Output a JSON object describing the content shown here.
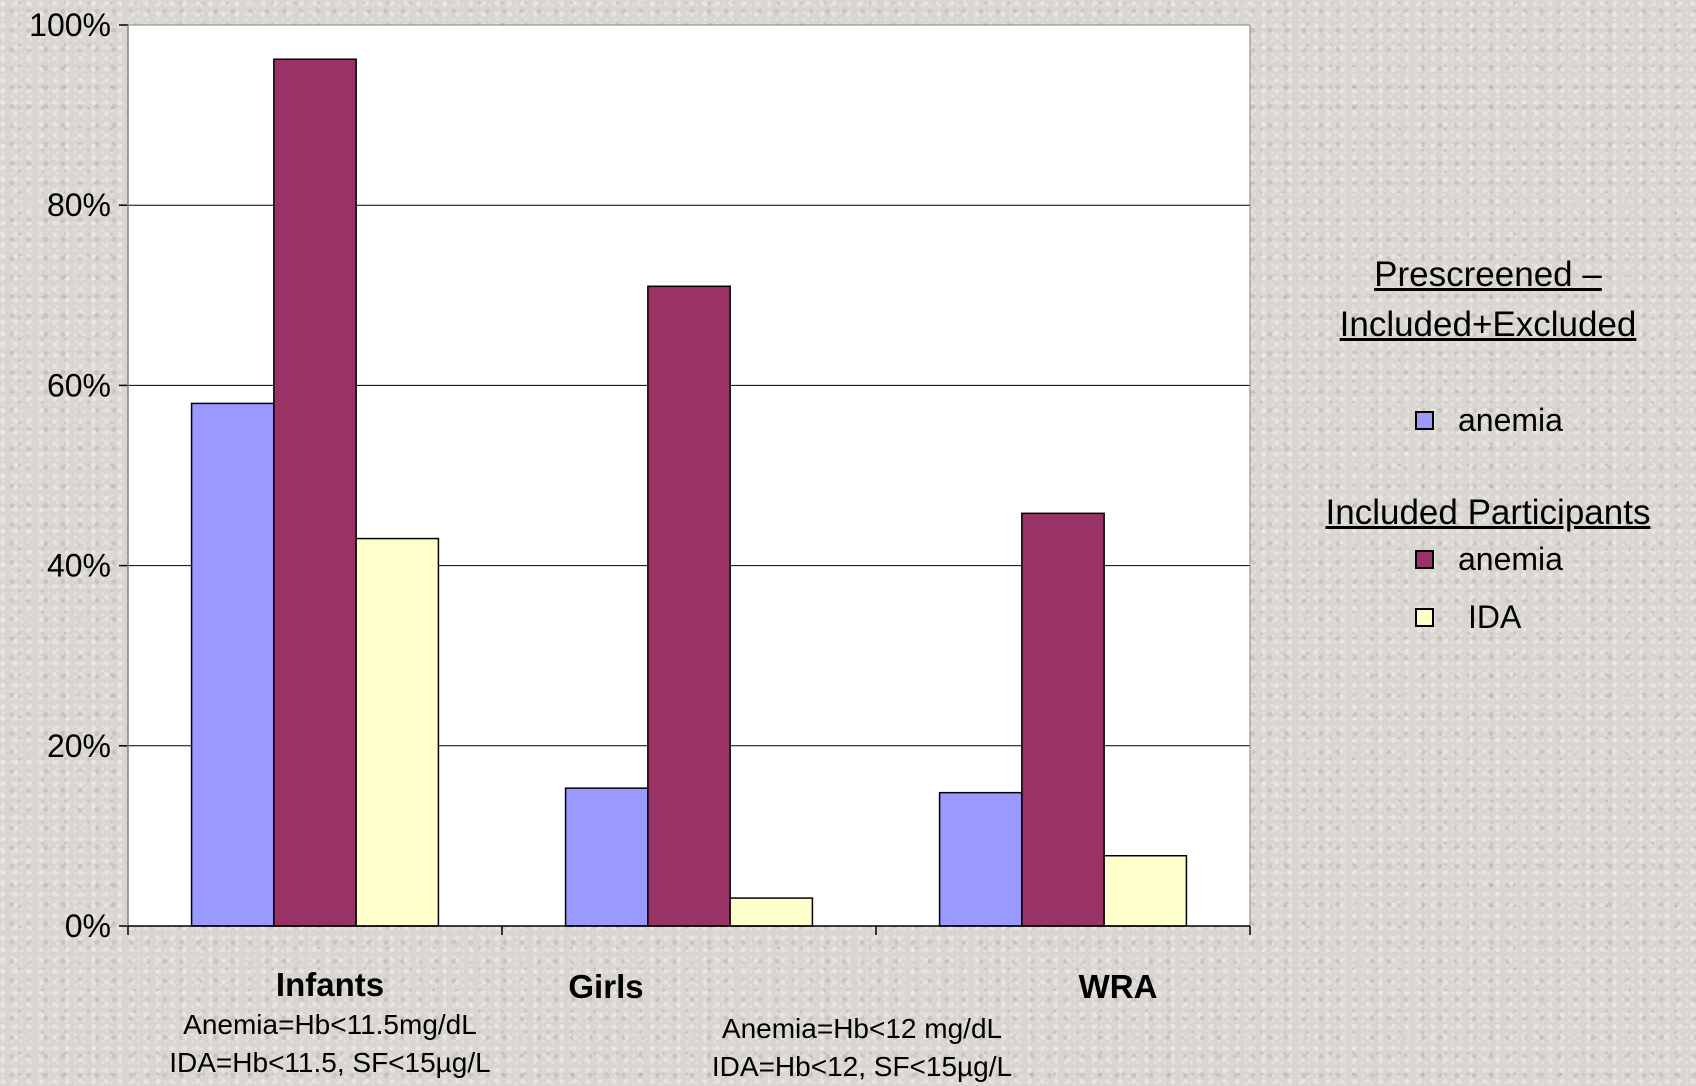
{
  "chart_data": {
    "type": "bar",
    "categories": [
      "Infants",
      "Girls",
      "WRA"
    ],
    "series": [
      {
        "name": "anemia",
        "group": "Prescreened – Included+Excluded",
        "values": [
          58,
          15.3,
          14.8
        ]
      },
      {
        "name": "anemia",
        "group": "Included Participants",
        "values": [
          96.2,
          71,
          45.8
        ]
      },
      {
        "name": "IDA",
        "group": "Included Participants",
        "values": [
          43,
          3.1,
          7.8
        ]
      }
    ],
    "ylim": [
      0,
      100
    ],
    "yticks": [
      0,
      20,
      40,
      60,
      80,
      100
    ],
    "ytick_labels": [
      "0%",
      "20%",
      "40%",
      "60%",
      "80%",
      "100%"
    ],
    "grid": true,
    "legend_placement": "right"
  },
  "colors": {
    "series": [
      "#9999ff",
      "#993366",
      "#ffffcc"
    ],
    "plot_background": "#ffffff",
    "gridline": "#000000"
  },
  "notes": {
    "infants_line1": "Anemia=Hb<11.5mg/dL",
    "infants_line2": "IDA=Hb<11.5, SF<15µg/L",
    "girls_wra_line1": "Anemia=Hb<12 mg/dL",
    "girls_wra_line2": "IDA=Hb<12, SF<15µg/L"
  },
  "legend": {
    "heading1_line1": "Prescreened –",
    "heading1_line2": "Included+Excluded",
    "item1": "anemia",
    "heading2": "Included Participants",
    "item2": "anemia",
    "item3": "IDA"
  }
}
